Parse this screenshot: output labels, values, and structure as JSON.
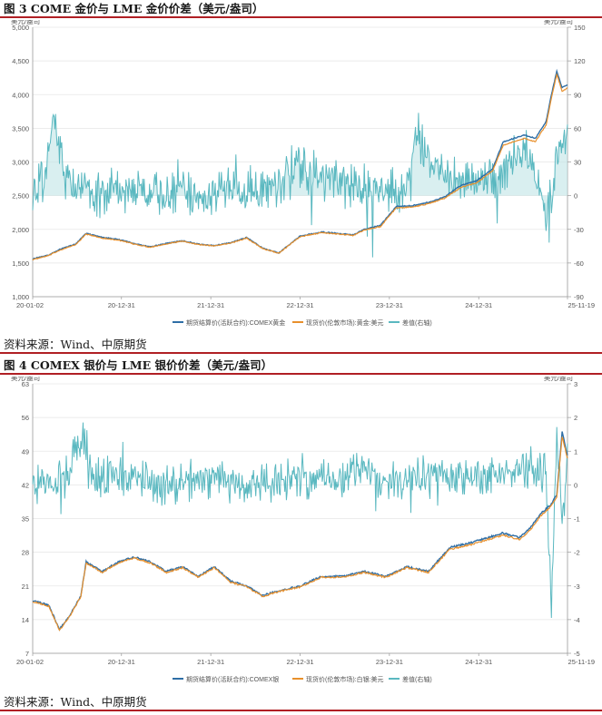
{
  "figures": [
    {
      "title": "图 3 COME 金价与 LME 金价价差（美元/盎司）",
      "source": "资料来源：Wind、中原期货"
    },
    {
      "title": "图 4 COMEX 银价与 LME 银价价差（美元/盎司）",
      "source": "资料来源：Wind、中原期货"
    }
  ],
  "colors": {
    "futures": "#2e6ea6",
    "spot": "#e8902c",
    "spread": "#5ab8c0",
    "spread_fill": "#bfe4e6",
    "rule": "#b01f24"
  },
  "chart_data": [
    {
      "type": "line",
      "y_left_unit": "美元/盎司",
      "y_right_unit": "美元/盎司",
      "ylim_left": [
        1000,
        5000
      ],
      "yticks_left": [
        "1,000",
        "1,500",
        "2,000",
        "2,500",
        "3,000",
        "3,500",
        "4,000",
        "4,500",
        "5,000"
      ],
      "ylim_right": [
        -90,
        150
      ],
      "yticks_right": [
        "-90",
        "-60",
        "-30",
        "0",
        "30",
        "60",
        "90",
        "120",
        "150"
      ],
      "x_ticks": [
        "20-01-02",
        "20-12-31",
        "21-12-31",
        "22-12-31",
        "23-12-31",
        "24-12-31",
        "25-11-19"
      ],
      "legend": [
        "期货结算价(活跃合约):COMEX黄金",
        "现货价(伦敦市场):黄金:美元",
        "差值(右轴)"
      ],
      "grid": true,
      "series": [
        {
          "name": "期货结算价(活跃合约):COMEX黄金",
          "axis": "left",
          "x": [
            0,
            0.03,
            0.05,
            0.08,
            0.1,
            0.13,
            0.16,
            0.19,
            0.22,
            0.25,
            0.28,
            0.31,
            0.34,
            0.37,
            0.4,
            0.43,
            0.46,
            0.5,
            0.54,
            0.57,
            0.6,
            0.62,
            0.65,
            0.68,
            0.71,
            0.74,
            0.77,
            0.8,
            0.83,
            0.86,
            0.88,
            0.9,
            0.92,
            0.94,
            0.96,
            0.97,
            0.98,
            0.99,
            1
          ],
          "values": [
            1560,
            1620,
            1700,
            1780,
            1940,
            1880,
            1850,
            1790,
            1740,
            1790,
            1830,
            1780,
            1760,
            1800,
            1880,
            1720,
            1650,
            1900,
            1960,
            1940,
            1920,
            2000,
            2060,
            2340,
            2350,
            2400,
            2480,
            2650,
            2720,
            2900,
            3300,
            3350,
            3400,
            3350,
            3600,
            4000,
            4350,
            4100,
            4150
          ]
        },
        {
          "name": "现货价(伦敦市场):黄金:美元",
          "axis": "left",
          "x": [
            0,
            0.03,
            0.05,
            0.08,
            0.1,
            0.13,
            0.16,
            0.19,
            0.22,
            0.25,
            0.28,
            0.31,
            0.34,
            0.37,
            0.4,
            0.43,
            0.46,
            0.5,
            0.54,
            0.57,
            0.6,
            0.62,
            0.65,
            0.68,
            0.71,
            0.74,
            0.77,
            0.8,
            0.83,
            0.86,
            0.88,
            0.9,
            0.92,
            0.94,
            0.96,
            0.97,
            0.98,
            0.99,
            1
          ],
          "values": [
            1550,
            1610,
            1690,
            1770,
            1930,
            1870,
            1840,
            1780,
            1735,
            1785,
            1825,
            1775,
            1755,
            1795,
            1870,
            1715,
            1645,
            1890,
            1950,
            1930,
            1910,
            1990,
            2040,
            2320,
            2330,
            2380,
            2460,
            2620,
            2690,
            2870,
            3250,
            3300,
            3350,
            3300,
            3550,
            3950,
            4300,
            4050,
            4100
          ]
        },
        {
          "name": "差值(右轴)",
          "axis": "right",
          "x": [
            0,
            0.02,
            0.04,
            0.06,
            0.08,
            0.1,
            0.15,
            0.2,
            0.25,
            0.3,
            0.35,
            0.4,
            0.45,
            0.5,
            0.55,
            0.6,
            0.65,
            0.7,
            0.72,
            0.75,
            0.8,
            0.85,
            0.88,
            0.9,
            0.92,
            0.94,
            0.96,
            0.98,
            1
          ],
          "values": [
            5,
            10,
            70,
            20,
            5,
            5,
            3,
            5,
            0,
            0,
            5,
            5,
            10,
            25,
            10,
            10,
            5,
            5,
            55,
            25,
            15,
            10,
            20,
            30,
            40,
            20,
            -20,
            30,
            60
          ]
        }
      ]
    },
    {
      "type": "line",
      "y_left_unit": "美元/盎司",
      "y_right_unit": "美元/盎司",
      "ylim_left": [
        7,
        63
      ],
      "yticks_left": [
        "7",
        "14",
        "21",
        "28",
        "35",
        "42",
        "49",
        "56",
        "63"
      ],
      "ylim_right": [
        -5,
        3
      ],
      "yticks_right": [
        "-5",
        "-4",
        "-3",
        "-2",
        "-1",
        "0",
        "1",
        "2",
        "3"
      ],
      "x_ticks": [
        "20-01-02",
        "20-12-31",
        "21-12-31",
        "22-12-31",
        "23-12-31",
        "24-12-31",
        "25-11-19"
      ],
      "legend": [
        "期货结算价(活跃合约):COMEX银",
        "现货价(伦敦市场):白银:美元",
        "差值(右轴)"
      ],
      "grid": true,
      "series": [
        {
          "name": "期货结算价(活跃合约):COMEX银",
          "axis": "left",
          "x": [
            0,
            0.03,
            0.05,
            0.07,
            0.09,
            0.1,
            0.13,
            0.16,
            0.19,
            0.22,
            0.25,
            0.28,
            0.31,
            0.34,
            0.37,
            0.4,
            0.43,
            0.46,
            0.5,
            0.54,
            0.58,
            0.62,
            0.66,
            0.7,
            0.74,
            0.78,
            0.82,
            0.85,
            0.88,
            0.91,
            0.93,
            0.95,
            0.97,
            0.98,
            0.99,
            1
          ],
          "values": [
            18,
            17,
            12,
            15,
            19,
            26,
            24,
            26,
            27,
            26,
            24,
            25,
            23,
            25,
            22,
            21,
            19,
            20,
            21,
            23,
            23,
            24,
            23,
            25,
            24,
            29,
            30,
            31,
            32,
            31,
            33,
            36,
            38,
            40,
            53,
            48
          ]
        },
        {
          "name": "现货价(伦敦市场):白银:美元",
          "axis": "left",
          "x": [
            0,
            0.03,
            0.05,
            0.07,
            0.09,
            0.1,
            0.13,
            0.16,
            0.19,
            0.22,
            0.25,
            0.28,
            0.31,
            0.34,
            0.37,
            0.4,
            0.43,
            0.46,
            0.5,
            0.54,
            0.58,
            0.62,
            0.66,
            0.7,
            0.74,
            0.78,
            0.82,
            0.85,
            0.88,
            0.91,
            0.93,
            0.95,
            0.97,
            0.98,
            0.99,
            1
          ],
          "values": [
            17.8,
            16.8,
            11.8,
            14.8,
            18.8,
            25.8,
            23.8,
            25.8,
            26.8,
            25.8,
            23.8,
            24.8,
            22.8,
            24.8,
            21.8,
            20.8,
            18.8,
            19.8,
            20.8,
            22.8,
            22.8,
            23.8,
            22.8,
            24.8,
            23.8,
            28.6,
            29.6,
            30.6,
            31.6,
            30.6,
            32.6,
            35.6,
            37.6,
            39.6,
            52,
            47.5
          ]
        },
        {
          "name": "差值(右轴)",
          "axis": "right",
          "x": [
            0,
            0.03,
            0.06,
            0.09,
            0.12,
            0.15,
            0.2,
            0.25,
            0.3,
            0.35,
            0.4,
            0.45,
            0.5,
            0.55,
            0.6,
            0.65,
            0.7,
            0.75,
            0.8,
            0.85,
            0.9,
            0.93,
            0.96,
            0.97,
            0.98,
            0.99,
            1
          ],
          "values": [
            0,
            0.1,
            0.2,
            1.5,
            0.1,
            0.3,
            0.1,
            0,
            0.1,
            0.2,
            0,
            0.1,
            0.2,
            0.2,
            0.3,
            0.2,
            0.1,
            0.3,
            0.2,
            0.2,
            0.3,
            0.5,
            0.2,
            -3.7,
            1.5,
            -1.3,
            0.9
          ]
        }
      ]
    }
  ]
}
